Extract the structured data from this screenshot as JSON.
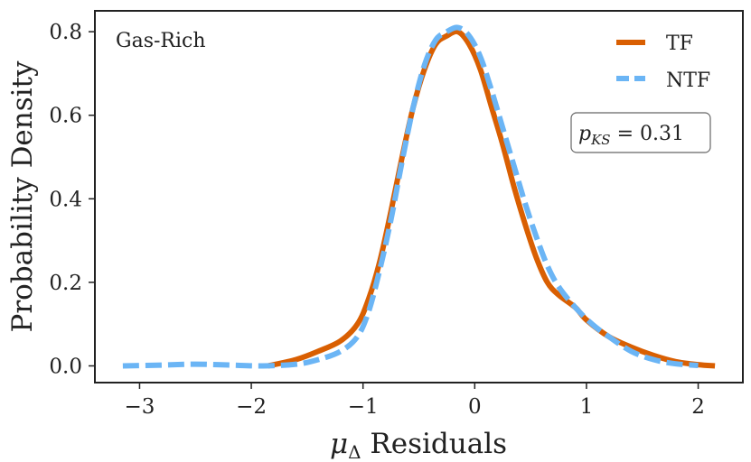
{
  "chart_data": {
    "type": "line",
    "title": "",
    "annotation": "Gas-Rich",
    "xlabel": "μΔ Residuals",
    "xlabel_symbol": "μ",
    "xlabel_subscript": "Δ",
    "xlabel_text": " Residuals",
    "ylabel": "Probability Density",
    "xlim": [
      -3.4,
      2.4
    ],
    "ylim": [
      -0.04,
      0.85
    ],
    "xticks": [
      -3,
      -2,
      -1,
      0,
      1,
      2
    ],
    "xtick_labels": [
      "−3",
      "−2",
      "−1",
      "0",
      "1",
      "2"
    ],
    "yticks": [
      0.0,
      0.2,
      0.4,
      0.6,
      0.8
    ],
    "ytick_labels": [
      "0.0",
      "0.2",
      "0.4",
      "0.6",
      "0.8"
    ],
    "ks_box": {
      "p": "p",
      "sub": "KS",
      "rest": " = 0.31"
    },
    "legend_position": "top-right",
    "series": [
      {
        "name": "TF",
        "style": "solid",
        "color": "#D95F02",
        "points": [
          [
            -1.85,
            0.0
          ],
          [
            -1.6,
            0.015
          ],
          [
            -1.4,
            0.035
          ],
          [
            -1.2,
            0.06
          ],
          [
            -1.05,
            0.1
          ],
          [
            -0.95,
            0.16
          ],
          [
            -0.85,
            0.25
          ],
          [
            -0.75,
            0.37
          ],
          [
            -0.65,
            0.5
          ],
          [
            -0.55,
            0.62
          ],
          [
            -0.45,
            0.71
          ],
          [
            -0.35,
            0.77
          ],
          [
            -0.25,
            0.79
          ],
          [
            -0.15,
            0.8
          ],
          [
            -0.05,
            0.77
          ],
          [
            0.05,
            0.71
          ],
          [
            0.15,
            0.62
          ],
          [
            0.25,
            0.53
          ],
          [
            0.35,
            0.43
          ],
          [
            0.45,
            0.34
          ],
          [
            0.55,
            0.26
          ],
          [
            0.65,
            0.2
          ],
          [
            0.75,
            0.17
          ],
          [
            0.9,
            0.14
          ],
          [
            1.0,
            0.11
          ],
          [
            1.2,
            0.07
          ],
          [
            1.4,
            0.045
          ],
          [
            1.6,
            0.025
          ],
          [
            1.8,
            0.01
          ],
          [
            2.0,
            0.003
          ],
          [
            2.15,
            0.0
          ]
        ]
      },
      {
        "name": "NTF",
        "style": "dashed",
        "color": "#6BB5F5",
        "points": [
          [
            -3.15,
            0.0
          ],
          [
            -2.8,
            0.002
          ],
          [
            -2.5,
            0.004
          ],
          [
            -2.2,
            0.002
          ],
          [
            -1.9,
            0.0
          ],
          [
            -1.6,
            0.004
          ],
          [
            -1.4,
            0.015
          ],
          [
            -1.2,
            0.035
          ],
          [
            -1.05,
            0.07
          ],
          [
            -0.95,
            0.13
          ],
          [
            -0.85,
            0.23
          ],
          [
            -0.75,
            0.35
          ],
          [
            -0.65,
            0.49
          ],
          [
            -0.55,
            0.62
          ],
          [
            -0.45,
            0.72
          ],
          [
            -0.35,
            0.78
          ],
          [
            -0.25,
            0.8
          ],
          [
            -0.15,
            0.81
          ],
          [
            -0.05,
            0.79
          ],
          [
            0.05,
            0.74
          ],
          [
            0.15,
            0.66
          ],
          [
            0.25,
            0.57
          ],
          [
            0.35,
            0.48
          ],
          [
            0.45,
            0.39
          ],
          [
            0.55,
            0.31
          ],
          [
            0.65,
            0.24
          ],
          [
            0.75,
            0.19
          ],
          [
            0.9,
            0.14
          ],
          [
            1.05,
            0.1
          ],
          [
            1.2,
            0.07
          ],
          [
            1.4,
            0.035
          ],
          [
            1.6,
            0.015
          ],
          [
            1.8,
            0.005
          ],
          [
            2.0,
            0.001
          ]
        ]
      }
    ]
  }
}
